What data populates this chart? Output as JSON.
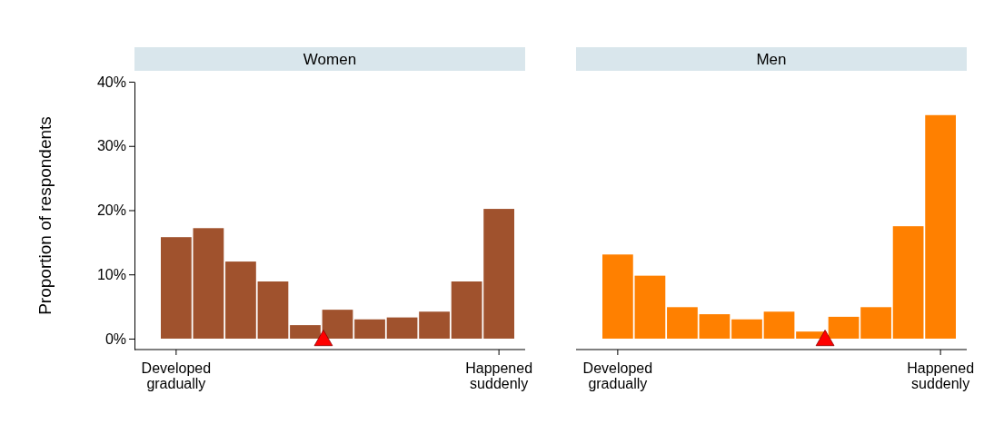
{
  "chart_data": [
    {
      "type": "bar",
      "title": "Women",
      "ylabel": "Proportion of respondents",
      "categories": [
        "Developed\ngradually",
        null,
        null,
        null,
        null,
        null,
        null,
        null,
        null,
        null,
        "Happened\nsuddenly"
      ],
      "values": [
        15.8,
        17.2,
        12.0,
        8.9,
        2.1,
        4.5,
        3.0,
        3.3,
        4.2,
        8.9,
        20.2
      ],
      "color": "#a0522d",
      "ylim": [
        -1.7,
        40
      ],
      "yticks": [
        {
          "value": 0,
          "label": "0%"
        },
        {
          "value": 10,
          "label": "10%"
        },
        {
          "value": 20,
          "label": "20%"
        },
        {
          "value": 30,
          "label": "30%"
        },
        {
          "value": 40,
          "label": "40%"
        }
      ]
    },
    {
      "type": "bar",
      "title": "Men",
      "categories": [
        "Developed\ngradually",
        null,
        null,
        null,
        null,
        null,
        null,
        null,
        null,
        null,
        "Happened\nsuddenly"
      ],
      "values": [
        13.1,
        9.8,
        4.9,
        3.8,
        3.0,
        4.2,
        1.1,
        3.4,
        4.9,
        17.5,
        34.8
      ],
      "color": "#ff8000",
      "ylim": [
        -1.7,
        40
      ],
      "tick_labels": "x"
    }
  ]
}
